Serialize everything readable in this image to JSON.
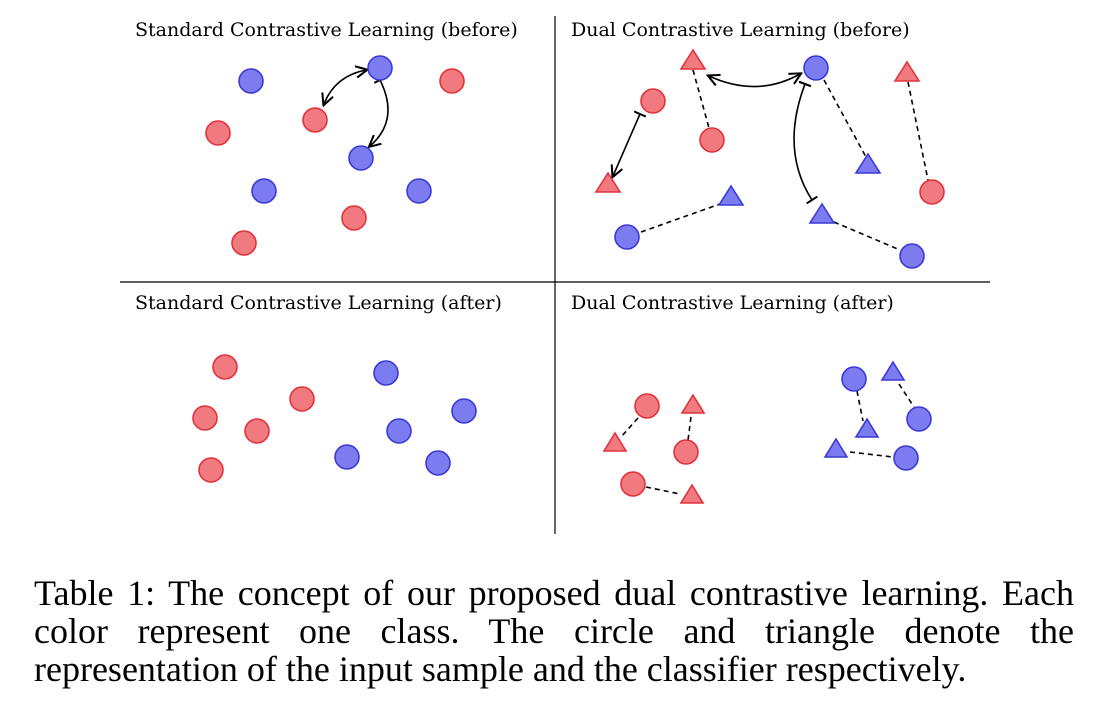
{
  "panels": {
    "top_left": {
      "title": "Standard Contrastive Learning (before)"
    },
    "top_right": {
      "title": "Dual Contrastive Learning (before)"
    },
    "bottom_left": {
      "title": "Standard Contrastive Learning (after)"
    },
    "bottom_right": {
      "title": "Dual Contrastive Learning (after)"
    }
  },
  "colors": {
    "class_red_fill": "#f07a7f",
    "class_red_stroke": "#e0333b",
    "class_blue_fill": "#7c7cf0",
    "class_blue_stroke": "#3a3ad6"
  },
  "legend_shapes": {
    "circle": "representation of the input sample",
    "triangle": "classifier"
  },
  "caption": "Table 1: The concept of our proposed dual contrastive learning. Each color represent one class. The circle and triangle denote the representation of the input sample and the classifier respectively."
}
